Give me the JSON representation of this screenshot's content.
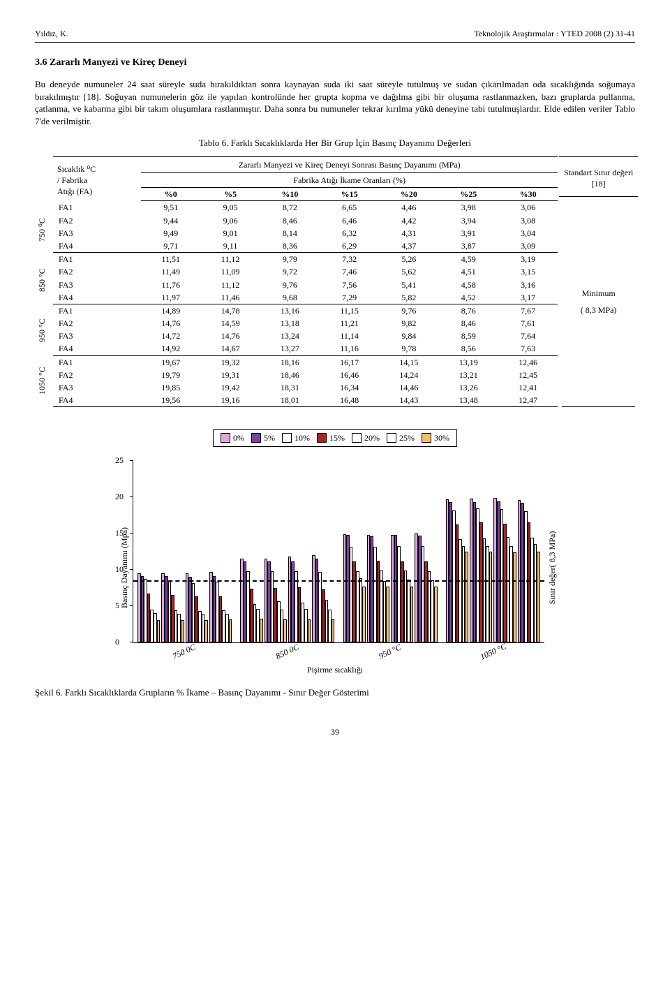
{
  "header": {
    "left": "Yıldız, K.",
    "right": "Teknolojik Araştırmalar : YTED 2008 (2) 31-41"
  },
  "section": {
    "heading": "3.6 Zararlı Manyezi ve Kireç Deneyi",
    "para": "Bu deneyde numuneler 24 saat süreyle suda bırakıldıktan sonra kaynayan suda iki saat süreyle tutulmuş ve sudan çıkarılmadan oda sıcaklığında soğumaya bırakılmıştır [18]. Soğuyan numunelerin göz ile yapılan kontrolünde her grupta kopma ve dağılma gibi bir oluşuma rastlanmazken, bazı gruplarda pullanma, çatlanma, ve kabarma gibi bir takım oluşumlara rastlanmıştır. Daha sonra bu numuneler tekrar kırılma yükü deneyine tabi tutulmuşlardır. Elde edilen veriler Tablo 7'de verilmiştir."
  },
  "table6": {
    "caption": "Tablo 6. Farklı Sıcaklıklarda Her Bir Grup İçin Basınç Dayanımı Değerleri",
    "left_header_line1": "Sıcaklık ⁰C",
    "left_header_line2": "/ Fabrika",
    "left_header_line3": "Atığı (FA)",
    "spanning_title": "Zararlı Manyezi ve Kireç Deneyi Sonrası Basınç Dayanımı (MPa)",
    "subrow_title": "Fabrika Atığı İkame Oranları (%)",
    "cols": [
      "%0",
      "%5",
      "%10",
      "%15",
      "%20",
      "%25",
      "%30"
    ],
    "std_header": "Standart Sınır değeri [18]",
    "std_value_l1": "Minimum",
    "std_value_l2": "( 8,3 MPa)",
    "temps": [
      "750 ⁰C",
      "850 °C",
      "950 °C",
      "1050 °C"
    ],
    "groups": [
      [
        {
          "fa": "FA1",
          "v": [
            "9,51",
            "9,05",
            "8,72",
            "6,65",
            "4,46",
            "3,98",
            "3,06"
          ]
        },
        {
          "fa": "FA2",
          "v": [
            "9,44",
            "9,06",
            "8,46",
            "6,46",
            "4,42",
            "3,94",
            "3,08"
          ]
        },
        {
          "fa": "FA3",
          "v": [
            "9,49",
            "9,01",
            "8,14",
            "6,32",
            "4,31",
            "3,91",
            "3,04"
          ]
        },
        {
          "fa": "FA4",
          "v": [
            "9,71",
            "9,11",
            "8,36",
            "6,29",
            "4,37",
            "3,87",
            "3,09"
          ]
        }
      ],
      [
        {
          "fa": "FA1",
          "v": [
            "11,51",
            "11,12",
            "9,79",
            "7,32",
            "5,26",
            "4,59",
            "3,19"
          ]
        },
        {
          "fa": "FA2",
          "v": [
            "11,49",
            "11,09",
            "9,72",
            "7,46",
            "5,62",
            "4,51",
            "3,15"
          ]
        },
        {
          "fa": "FA3",
          "v": [
            "11,76",
            "11,12",
            "9,76",
            "7,56",
            "5,41",
            "4,58",
            "3,16"
          ]
        },
        {
          "fa": "FA4",
          "v": [
            "11,97",
            "11,46",
            "9,68",
            "7,29",
            "5,82",
            "4,52",
            "3,17"
          ]
        }
      ],
      [
        {
          "fa": "FA1",
          "v": [
            "14,89",
            "14,78",
            "13,16",
            "11,15",
            "9,76",
            "8,76",
            "7,67"
          ]
        },
        {
          "fa": "FA2",
          "v": [
            "14,76",
            "14,59",
            "13,18",
            "11,21",
            "9,82",
            "8,46",
            "7,61"
          ]
        },
        {
          "fa": "FA3",
          "v": [
            "14,72",
            "14,76",
            "13,24",
            "11,14",
            "9,84",
            "8,59",
            "7,64"
          ]
        },
        {
          "fa": "FA4",
          "v": [
            "14,92",
            "14,67",
            "13,27",
            "11,16",
            "9,78",
            "8,56",
            "7,63"
          ]
        }
      ],
      [
        {
          "fa": "FA1",
          "v": [
            "19,67",
            "19,32",
            "18,16",
            "16,17",
            "14,15",
            "13,19",
            "12,46"
          ]
        },
        {
          "fa": "FA2",
          "v": [
            "19,79",
            "19,31",
            "18,46",
            "16,46",
            "14,24",
            "13,21",
            "12,45"
          ]
        },
        {
          "fa": "FA3",
          "v": [
            "19,85",
            "19,42",
            "18,31",
            "16,34",
            "14,46",
            "13,26",
            "12,41"
          ]
        },
        {
          "fa": "FA4",
          "v": [
            "19,56",
            "19,16",
            "18,01",
            "16,48",
            "14,43",
            "13,48",
            "12,47"
          ]
        }
      ]
    ]
  },
  "chart": {
    "type": "bar",
    "ylim": [
      0,
      25
    ],
    "ytick_step": 5,
    "limit_value": 8.3,
    "ylabel": "Basınç Dayanımı (Mpa)",
    "ylabel_right": "Sınır değer( 8,3 MPa)",
    "xaxis_title": "Pişirme sıcaklığı",
    "xlabels": [
      "750 0C",
      "850 0C",
      "950 °C",
      "1050 °C"
    ],
    "legend": [
      "0%",
      "5%",
      "10%",
      "15%",
      "20%",
      "25%",
      "30%"
    ],
    "series_colors": [
      "#d8a8d8",
      "#7a3fa8",
      "#ffffff",
      "#b02020",
      "#ffffff",
      "#ffffff",
      "#f0c060"
    ],
    "series_border": "#000000",
    "background_color": "#ffffff",
    "clusters_per_group": 4,
    "note": "values are averages per FA group derived from table6",
    "data": [
      [
        [
          9.51,
          9.05,
          8.72,
          6.65,
          4.46,
          3.98,
          3.06
        ],
        [
          9.44,
          9.06,
          8.46,
          6.46,
          4.42,
          3.94,
          3.08
        ],
        [
          9.49,
          9.01,
          8.14,
          6.32,
          4.31,
          3.91,
          3.04
        ],
        [
          9.71,
          9.11,
          8.36,
          6.29,
          4.37,
          3.87,
          3.09
        ]
      ],
      [
        [
          11.51,
          11.12,
          9.79,
          7.32,
          5.26,
          4.59,
          3.19
        ],
        [
          11.49,
          11.09,
          9.72,
          7.46,
          5.62,
          4.51,
          3.15
        ],
        [
          11.76,
          11.12,
          9.76,
          7.56,
          5.41,
          4.58,
          3.16
        ],
        [
          11.97,
          11.46,
          9.68,
          7.29,
          5.82,
          4.52,
          3.17
        ]
      ],
      [
        [
          14.89,
          14.78,
          13.16,
          11.15,
          9.76,
          8.76,
          7.67
        ],
        [
          14.76,
          14.59,
          13.18,
          11.21,
          9.82,
          8.46,
          7.61
        ],
        [
          14.72,
          14.76,
          13.24,
          11.14,
          9.84,
          8.59,
          7.64
        ],
        [
          14.92,
          14.67,
          13.27,
          11.16,
          9.78,
          8.56,
          7.63
        ]
      ],
      [
        [
          19.67,
          19.32,
          18.16,
          16.17,
          14.15,
          13.19,
          12.46
        ],
        [
          19.79,
          19.31,
          18.46,
          16.46,
          14.24,
          13.21,
          12.45
        ],
        [
          19.85,
          19.42,
          18.31,
          16.34,
          14.46,
          13.26,
          12.41
        ],
        [
          19.56,
          19.16,
          18.01,
          16.48,
          14.43,
          13.48,
          12.47
        ]
      ]
    ]
  },
  "fig6_caption": "Şekil 6. Farklı Sıcaklıklarda Grupların % İkame – Basınç Dayanımı - Sınır Değer Gösterimi",
  "pagenum": "39"
}
